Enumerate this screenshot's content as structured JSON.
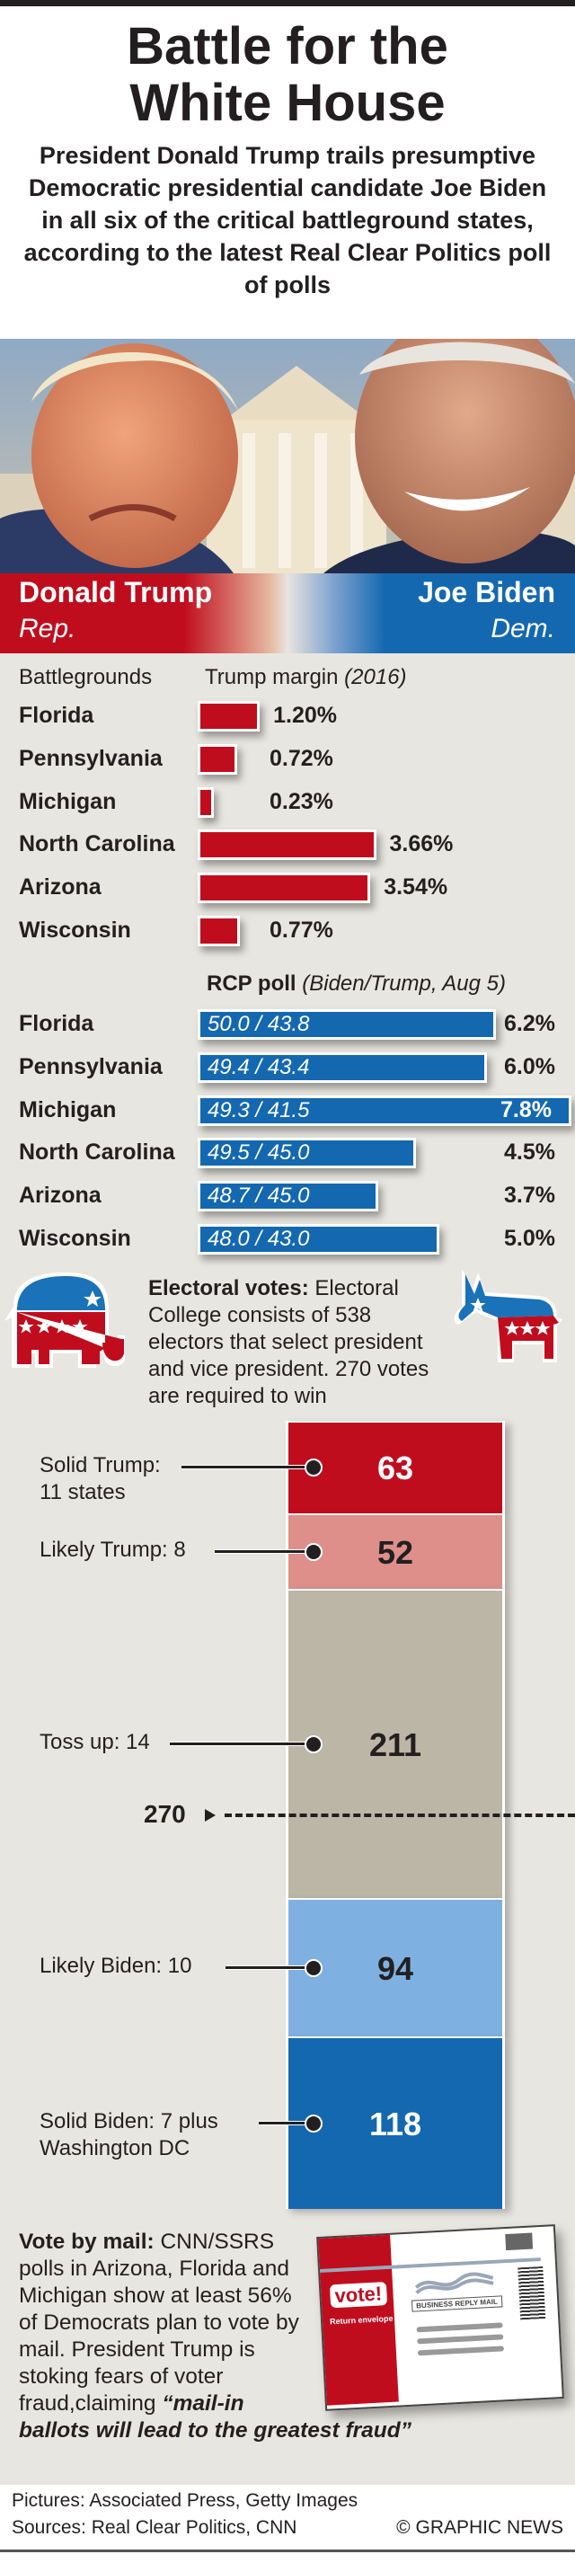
{
  "header": {
    "title_line1": "Battle for the",
    "title_line2": "White House",
    "subtitle": "President Donald Trump trails presumptive Democratic presidential candidate Joe Biden in all six of the critical battleground states, according to the latest Real Clear Politics poll of polls"
  },
  "candidates": {
    "trump": {
      "name": "Donald Trump",
      "party": "Rep."
    },
    "biden": {
      "name": "Joe Biden",
      "party": "Dem."
    }
  },
  "colors": {
    "rep_red": "#c00d1e",
    "dem_blue": "#1468b0",
    "likely_trump": "#de8f8a",
    "toss_up": "#bcb6a6",
    "likely_biden": "#7fb0e2",
    "panel_bg": "#e8e6e0"
  },
  "margin_section": {
    "col1_header": "Battlegrounds",
    "col2_header": "Trump margin",
    "col2_header_note": "(2016)"
  },
  "rcp_section": {
    "header": "RCP poll",
    "header_note": "(Biden/Trump, Aug 5)"
  },
  "electoral": {
    "lead": "Electoral votes:",
    "text": "Electoral College consists of 538 electors that select president and vice president. 270 votes are required to win",
    "threshold_label": "270",
    "icons": [
      "republican-elephant-icon",
      "democratic-donkey-icon"
    ]
  },
  "vote_by_mail": {
    "lead": "Vote by mail:",
    "text": "CNN/SSRS polls in Arizona, Florida and Michigan show at least 56% of Democrats plan to vote by mail. President Trump is stoking fears of voter fraud,claiming",
    "quote": "“mail-in ballots will lead to the greatest fraud”",
    "envelope": {
      "badge": "vote!",
      "subtitle": "Return envelope",
      "stamp": "BUSINESS REPLY MAIL"
    }
  },
  "footer": {
    "pictures": "Pictures: Associated Press, Getty Images",
    "sources": "Sources: Real Clear Politics, CNN",
    "credit": "© GRAPHIC NEWS"
  },
  "chart_data": [
    {
      "type": "bar",
      "orientation": "horizontal",
      "title": "Trump margin (2016)",
      "categories": [
        "Florida",
        "Pennsylvania",
        "Michigan",
        "North Carolina",
        "Arizona",
        "Wisconsin"
      ],
      "values": [
        1.2,
        0.72,
        0.23,
        3.66,
        3.54,
        0.77
      ],
      "labels": [
        "1.20%",
        "0.72%",
        "0.23%",
        "3.66%",
        "3.54%",
        "0.77%"
      ],
      "unit": "%",
      "color": "#c00d1e"
    },
    {
      "type": "bar",
      "orientation": "horizontal",
      "title": "RCP poll (Biden/Trump, Aug 5)",
      "categories": [
        "Florida",
        "Pennsylvania",
        "Michigan",
        "North Carolina",
        "Arizona",
        "Wisconsin"
      ],
      "polls": [
        "50.0 / 43.8",
        "49.4 / 43.4",
        "49.3 / 41.5",
        "49.5 / 45.0",
        "48.7 / 45.0",
        "48.0 / 43.0"
      ],
      "values": [
        6.2,
        6.0,
        7.8,
        4.5,
        3.7,
        5.0
      ],
      "labels": [
        "6.2%",
        "6.0%",
        "7.8%",
        "4.5%",
        "3.7%",
        "5.0%"
      ],
      "unit": "%",
      "color": "#1468b0"
    },
    {
      "type": "bar",
      "stacked": true,
      "title": "Electoral votes",
      "total": 538,
      "threshold": 270,
      "series": [
        {
          "name": "Solid Trump",
          "label_lines": [
            "Solid Trump:",
            "11 states"
          ],
          "value": 63,
          "color": "#c00d1e",
          "text_color": "#ffffff"
        },
        {
          "name": "Likely Trump",
          "label_lines": [
            "Likely Trump: 8"
          ],
          "value": 52,
          "color": "#de8f8a",
          "text_color": "#231f20"
        },
        {
          "name": "Toss up",
          "label_lines": [
            "Toss up: 14"
          ],
          "value": 211,
          "color": "#bcb6a6",
          "text_color": "#231f20"
        },
        {
          "name": "Likely Biden",
          "label_lines": [
            "Likely Biden: 10"
          ],
          "value": 94,
          "color": "#7fb0e2",
          "text_color": "#231f20"
        },
        {
          "name": "Solid Biden",
          "label_lines": [
            "Solid Biden: 7 plus",
            "Washington DC"
          ],
          "value": 118,
          "color": "#1468b0",
          "text_color": "#ffffff"
        }
      ]
    }
  ]
}
